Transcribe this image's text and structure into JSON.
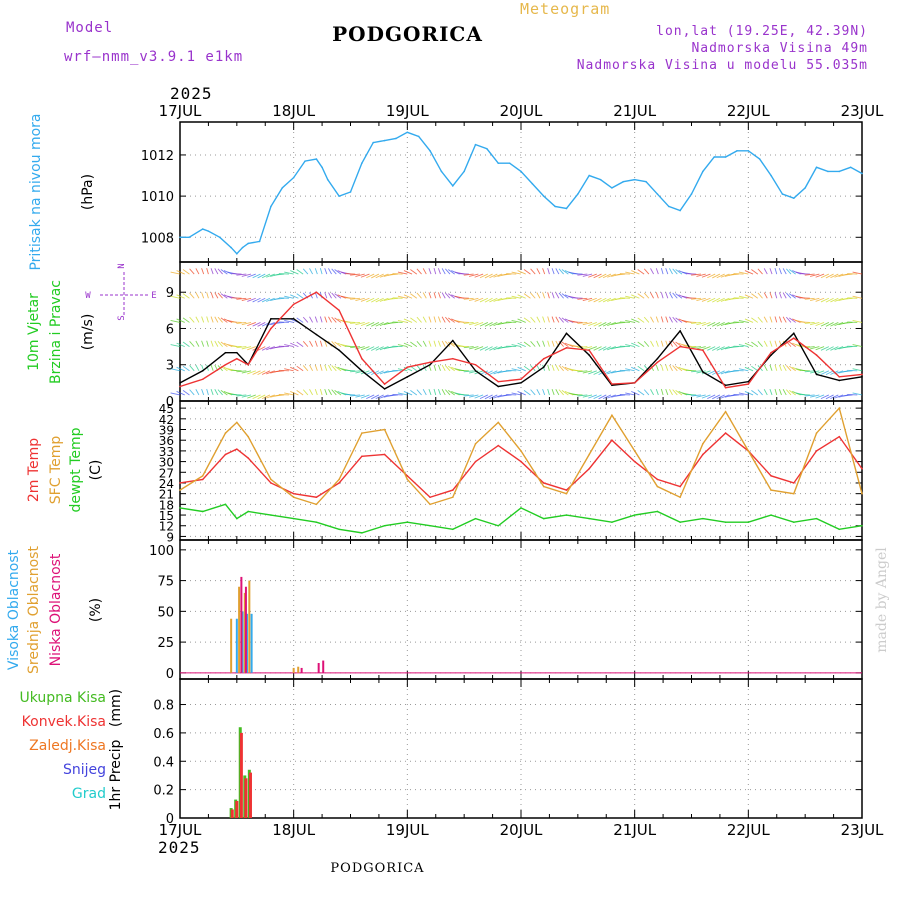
{
  "header": {
    "model_label": "Model",
    "model_name": "wrf—nmm_v3.9.1 e1km",
    "title": "PODGORICA",
    "meteogram": "Meteogram",
    "lonlat": "lon,lat (19.25E, 42.39N)",
    "elevation": "Nadmorska Visina 49m",
    "model_elevation": "Nadmorska Visina u modelu 55.035m",
    "year_top": "2025",
    "year_bottom": "2025",
    "footer": "PODGORICA",
    "watermark": "made by Angel"
  },
  "colors": {
    "purple": "#9933cc",
    "gold": "#e6b84c",
    "pressure": "#33aaee",
    "temp2m": "#ee3333",
    "sfc": "#e0a030",
    "dew": "#22cc22",
    "high_cloud": "#33aaee",
    "mid_cloud": "#e0a030",
    "low_cloud": "#dd1177",
    "rain_total": "#44bb22",
    "rain_conv": "#ee3333",
    "rain_frz": "#ee7722",
    "snow": "#4444dd",
    "hail": "#22cccc",
    "wind_black": "#000000",
    "wind_gust": "#ee3333"
  },
  "chart_data": [
    {
      "type": "line",
      "panel": "pressure",
      "x_ticks": [
        "17JUL",
        "18JUL",
        "19JUL",
        "20JUL",
        "21JUL",
        "22JUL",
        "23JUL"
      ],
      "ylabel_main": "Pritisak na nivou mora",
      "ylabel_unit": "(hPa)",
      "ylim": [
        1006.8,
        1013.6
      ],
      "y_ticks": [
        1008,
        1010,
        1012
      ],
      "grid": true,
      "series": [
        {
          "x": [
            0,
            0.08,
            0.2,
            0.25,
            0.35,
            0.45,
            0.5,
            0.55,
            0.6,
            0.7,
            0.8,
            0.9,
            1.0,
            1.1,
            1.2,
            1.25,
            1.3,
            1.4,
            1.5,
            1.6,
            1.7,
            1.8,
            1.9,
            2.0,
            2.1,
            2.2,
            2.3,
            2.4,
            2.5,
            2.6,
            2.7,
            2.8,
            2.9,
            3.0,
            3.1,
            3.2,
            3.3,
            3.4,
            3.5,
            3.6,
            3.7,
            3.8,
            3.9,
            4.0,
            4.1,
            4.2,
            4.3,
            4.4,
            4.5,
            4.6,
            4.7,
            4.8,
            4.9,
            5.0,
            5.1,
            5.2,
            5.3,
            5.4,
            5.5,
            5.6,
            5.7,
            5.8,
            5.9,
            6.0
          ],
          "values": [
            1008,
            1008,
            1008.4,
            1008.3,
            1008,
            1007.5,
            1007.2,
            1007.5,
            1007.7,
            1007.8,
            1009.5,
            1010.4,
            1010.9,
            1011.7,
            1011.8,
            1011.4,
            1010.8,
            1010,
            1010.2,
            1011.6,
            1012.6,
            1012.7,
            1012.8,
            1013.1,
            1012.9,
            1012.2,
            1011.2,
            1010.5,
            1011.2,
            1012.5,
            1012.3,
            1011.6,
            1011.6,
            1011.2,
            1010.6,
            1010,
            1009.5,
            1009.4,
            1010.1,
            1011,
            1010.8,
            1010.4,
            1010.7,
            1010.8,
            1010.7,
            1010.1,
            1009.5,
            1009.3,
            1010.1,
            1011.2,
            1011.9,
            1011.9,
            1012.2,
            1012.2,
            1011.8,
            1011,
            1010.1,
            1009.9,
            1010.4,
            1011.4,
            1011.2,
            1011.2,
            1011.4,
            1011.1
          ],
          "color_key": "pressure"
        }
      ]
    },
    {
      "type": "line",
      "panel": "wind",
      "ylabel_main": "10m Vjetar",
      "ylabel_sub": "Brzina i Pravac",
      "ylabel_unit": "(m/s)",
      "compass": {
        "n": "N",
        "s": "S",
        "e": "E",
        "w": "W"
      },
      "ylim": [
        0,
        11.5
      ],
      "y_ticks": [
        0,
        3,
        6,
        9
      ],
      "grid": true,
      "series": [
        {
          "name": "speed",
          "color_key": "wind_black",
          "x": [
            0,
            0.2,
            0.4,
            0.5,
            0.6,
            0.8,
            1.0,
            1.2,
            1.4,
            1.6,
            1.8,
            2.0,
            2.2,
            2.4,
            2.6,
            2.8,
            3.0,
            3.2,
            3.4,
            3.6,
            3.8,
            4.0,
            4.2,
            4.4,
            4.6,
            4.8,
            5.0,
            5.2,
            5.4,
            5.6,
            5.8,
            6.0
          ],
          "values": [
            1.5,
            2.5,
            4,
            4,
            3,
            6.8,
            6.8,
            5.5,
            4.2,
            2.5,
            1,
            2,
            3,
            5,
            2.5,
            1.2,
            1.5,
            2.8,
            5.6,
            3.8,
            1.3,
            1.5,
            3.5,
            5.8,
            2.4,
            1.3,
            1.6,
            3.8,
            5.6,
            2.2,
            1.7,
            2.0
          ]
        },
        {
          "name": "gust",
          "color_key": "wind_gust",
          "x": [
            0,
            0.2,
            0.4,
            0.5,
            0.6,
            0.8,
            1.0,
            1.2,
            1.4,
            1.6,
            1.8,
            2.0,
            2.2,
            2.4,
            2.6,
            2.8,
            3.0,
            3.2,
            3.4,
            3.6,
            3.8,
            4.0,
            4.2,
            4.4,
            4.6,
            4.8,
            5.0,
            5.2,
            5.4,
            5.6,
            5.8,
            6.0
          ],
          "values": [
            1.2,
            1.8,
            3,
            3.5,
            3,
            6,
            8,
            9,
            7.5,
            3.5,
            1.4,
            2.8,
            3.2,
            3.5,
            3,
            1.6,
            1.8,
            3.5,
            4.4,
            4.2,
            1.4,
            1.5,
            3.2,
            4.5,
            4.2,
            1.1,
            1.4,
            4,
            5.2,
            3.8,
            2,
            2.2
          ]
        }
      ]
    },
    {
      "type": "line",
      "panel": "temperature",
      "ylabel_main": "2m Temp",
      "ylabel_sfc": "SFC Temp",
      "ylabel_dew": "dewpt Temp",
      "ylabel_unit": "(C)",
      "ylim": [
        8,
        47
      ],
      "y_ticks": [
        9,
        12,
        15,
        18,
        21,
        24,
        27,
        30,
        33,
        36,
        39,
        42,
        45,
        48
      ],
      "grid": true,
      "series": [
        {
          "name": "2m Temp",
          "color_key": "temp2m",
          "x": [
            0,
            0.2,
            0.4,
            0.5,
            0.6,
            0.8,
            1.0,
            1.2,
            1.4,
            1.6,
            1.8,
            2.0,
            2.2,
            2.4,
            2.6,
            2.8,
            3.0,
            3.2,
            3.4,
            3.6,
            3.8,
            4.0,
            4.2,
            4.4,
            4.6,
            4.8,
            5.0,
            5.2,
            5.4,
            5.6,
            5.8,
            6.0
          ],
          "values": [
            24,
            25,
            32,
            33.5,
            31,
            24,
            21,
            20,
            24,
            31.5,
            32,
            26,
            20,
            22,
            30,
            34.5,
            30,
            24,
            22,
            28,
            36,
            30,
            25,
            23,
            32,
            38,
            33,
            26,
            24,
            33,
            37,
            28
          ]
        },
        {
          "name": "SFC Temp",
          "color_key": "sfc",
          "x": [
            0,
            0.2,
            0.4,
            0.5,
            0.6,
            0.8,
            1.0,
            1.2,
            1.4,
            1.6,
            1.8,
            2.0,
            2.2,
            2.4,
            2.6,
            2.8,
            3.0,
            3.2,
            3.4,
            3.6,
            3.8,
            4.0,
            4.2,
            4.4,
            4.6,
            4.8,
            5.0,
            5.2,
            5.4,
            5.6,
            5.8,
            6.0
          ],
          "values": [
            22,
            26,
            38,
            41,
            37,
            25,
            20,
            18,
            25,
            38,
            39,
            25,
            18,
            20,
            35,
            41,
            33,
            23,
            21,
            32,
            43,
            33,
            23,
            20,
            35,
            44,
            33,
            22,
            21,
            38,
            45,
            21
          ]
        },
        {
          "name": "dewpt Temp",
          "color_key": "dew",
          "x": [
            0,
            0.2,
            0.4,
            0.5,
            0.6,
            0.8,
            1.0,
            1.2,
            1.4,
            1.6,
            1.8,
            2.0,
            2.2,
            2.4,
            2.6,
            2.8,
            3.0,
            3.2,
            3.4,
            3.6,
            3.8,
            4.0,
            4.2,
            4.4,
            4.6,
            4.8,
            5.0,
            5.2,
            5.4,
            5.6,
            5.8,
            6.0
          ],
          "values": [
            17,
            16,
            18,
            14,
            16,
            15,
            14,
            13,
            11,
            10,
            12,
            13,
            12,
            11,
            14,
            12,
            17,
            14,
            15,
            14,
            13,
            15,
            16,
            13,
            14,
            13,
            13,
            15,
            13,
            14,
            11,
            12
          ]
        }
      ]
    },
    {
      "type": "bar",
      "panel": "cloud",
      "ylabel_high": "Visoka Oblacnost",
      "ylabel_mid": "Srednja Oblacnost",
      "ylabel_low": "Niska Oblacnost",
      "ylabel_unit": "(%)",
      "ylim": [
        -5,
        108
      ],
      "y_ticks": [
        0,
        25,
        50,
        75,
        100
      ],
      "grid": true,
      "series": [
        {
          "name": "Visoka Oblacnost",
          "color_key": "high_cloud",
          "x": [
            0.5,
            0.55,
            0.59,
            0.63
          ],
          "values": [
            44,
            50,
            48,
            48
          ]
        },
        {
          "name": "Srednja Oblacnost",
          "color_key": "mid_cloud",
          "x": [
            0.45,
            0.52,
            0.57,
            0.61,
            1.0,
            1.04
          ],
          "values": [
            44,
            70,
            65,
            75,
            4,
            5
          ]
        },
        {
          "name": "Niska Oblacnost",
          "color_key": "low_cloud",
          "x": [
            0.54,
            0.58,
            1.07,
            1.22,
            1.26
          ],
          "values": [
            78,
            70,
            4,
            8,
            10
          ]
        }
      ]
    },
    {
      "type": "bar",
      "panel": "precip",
      "legend": [
        "Ukupna Kisa",
        "Konvek.Kisa",
        "Zaledj.Kisa",
        "Snijeg",
        "Grad"
      ],
      "ylabel_main": "1hr Precip",
      "ylabel_unit": "(mm)",
      "ylim": [
        0,
        0.98
      ],
      "y_ticks": [
        0,
        0.2,
        0.4,
        0.6,
        0.8
      ],
      "grid": true,
      "series": [
        {
          "name": "Ukupna Kisa",
          "color_key": "rain_total",
          "x": [
            0.45,
            0.49,
            0.53,
            0.57,
            0.61
          ],
          "values": [
            0.07,
            0.13,
            0.64,
            0.3,
            0.34
          ]
        },
        {
          "name": "Konvek.Kisa",
          "color_key": "rain_conv",
          "x": [
            0.46,
            0.5,
            0.54,
            0.58,
            0.62
          ],
          "values": [
            0.06,
            0.12,
            0.6,
            0.28,
            0.32
          ]
        }
      ]
    }
  ]
}
